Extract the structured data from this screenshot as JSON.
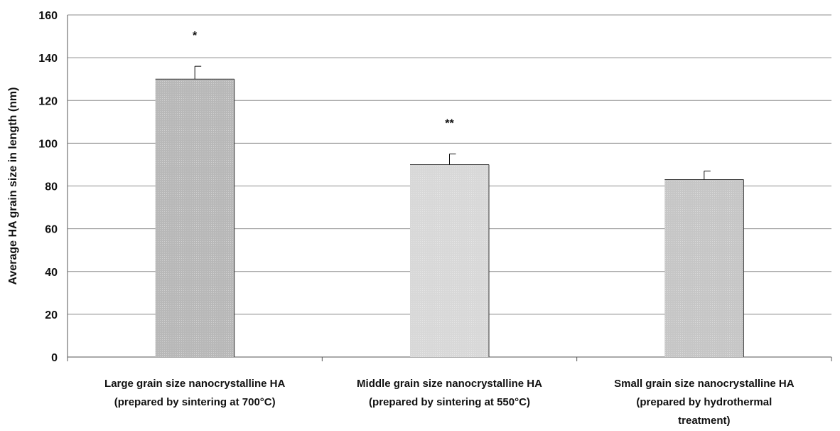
{
  "chart_data": {
    "type": "bar",
    "title": "",
    "xlabel": "",
    "ylabel": "Average HA grain size in length (nm)",
    "ylim": [
      0,
      160
    ],
    "yticks": [
      0,
      20,
      40,
      60,
      80,
      100,
      120,
      140,
      160
    ],
    "grid": true,
    "categories": [
      [
        "Large grain size nanocrystalline HA",
        "(prepared by sintering at 700°C)"
      ],
      [
        "Middle grain size nanocrystalline HA",
        "(prepared by sintering at 550°C)"
      ],
      [
        "Small grain size nanocrystalline HA",
        "(prepared by hydrothermal",
        "treatment)"
      ]
    ],
    "values": [
      130,
      90,
      83
    ],
    "errors": [
      6,
      5,
      4
    ],
    "annotations": [
      "*",
      "**",
      ""
    ],
    "bar_colors": [
      "#b8b8b8",
      "#d8d8d8",
      "#c6c6c6"
    ]
  }
}
